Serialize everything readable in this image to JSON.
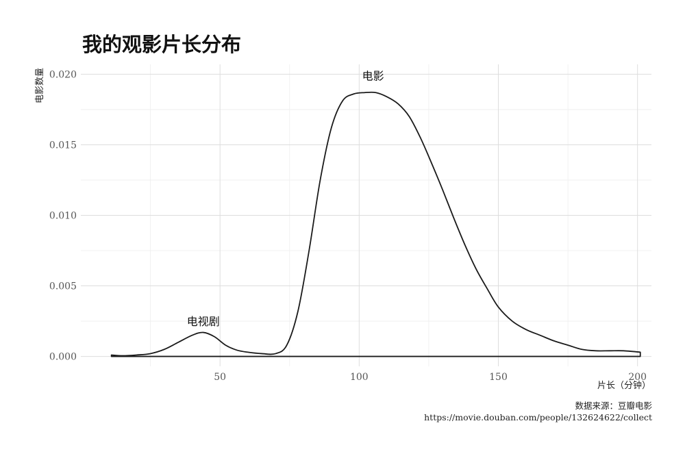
{
  "chart_data": {
    "type": "area",
    "title": "我的观影片长分布",
    "xlabel": "片长（分钟）",
    "ylabel": "电影数量",
    "xlim": [
      0,
      205
    ],
    "ylim": [
      -0.0007,
      0.0207
    ],
    "x_ticks": [
      50,
      100,
      150,
      200
    ],
    "x_tick_labels": [
      "50",
      "100",
      "150",
      "200"
    ],
    "y_ticks": [
      0.0,
      0.005,
      0.01,
      0.015,
      0.02
    ],
    "y_tick_labels": [
      "0.000",
      "0.005",
      "0.010",
      "0.015",
      "0.020"
    ],
    "grid": true,
    "legend": "none",
    "series": [
      {
        "x": [
          11,
          15,
          20,
          25,
          30,
          35,
          40,
          44,
          48,
          52,
          56,
          60,
          65,
          70,
          74,
          78,
          82,
          86,
          90,
          94,
          98,
          102,
          106,
          110,
          114,
          118,
          122,
          126,
          130,
          134,
          138,
          142,
          146,
          150,
          155,
          160,
          165,
          170,
          175,
          180,
          185,
          190,
          195,
          201
        ],
        "y": [
          0.0001,
          5e-05,
          0.0001,
          0.0002,
          0.0005,
          0.001,
          0.0015,
          0.0017,
          0.0014,
          0.0008,
          0.00045,
          0.0003,
          0.0002,
          0.0002,
          0.0008,
          0.0032,
          0.0075,
          0.0125,
          0.0162,
          0.0181,
          0.0186,
          0.0187,
          0.0187,
          0.0184,
          0.0179,
          0.017,
          0.0155,
          0.0137,
          0.0118,
          0.0098,
          0.0079,
          0.0062,
          0.0048,
          0.0035,
          0.0025,
          0.0019,
          0.0015,
          0.0011,
          0.0008,
          0.0005,
          0.0004,
          0.0004,
          0.0004,
          0.0003
        ]
      }
    ],
    "annotations": [
      {
        "text": "电视剧",
        "x": 44,
        "y": 0.0022
      },
      {
        "text": "电影",
        "x": 105,
        "y": 0.0196
      }
    ]
  },
  "caption": {
    "line1": "数据来源：豆瓣电影",
    "line2": "https://movie.douban.com/people/132624622/collect"
  }
}
